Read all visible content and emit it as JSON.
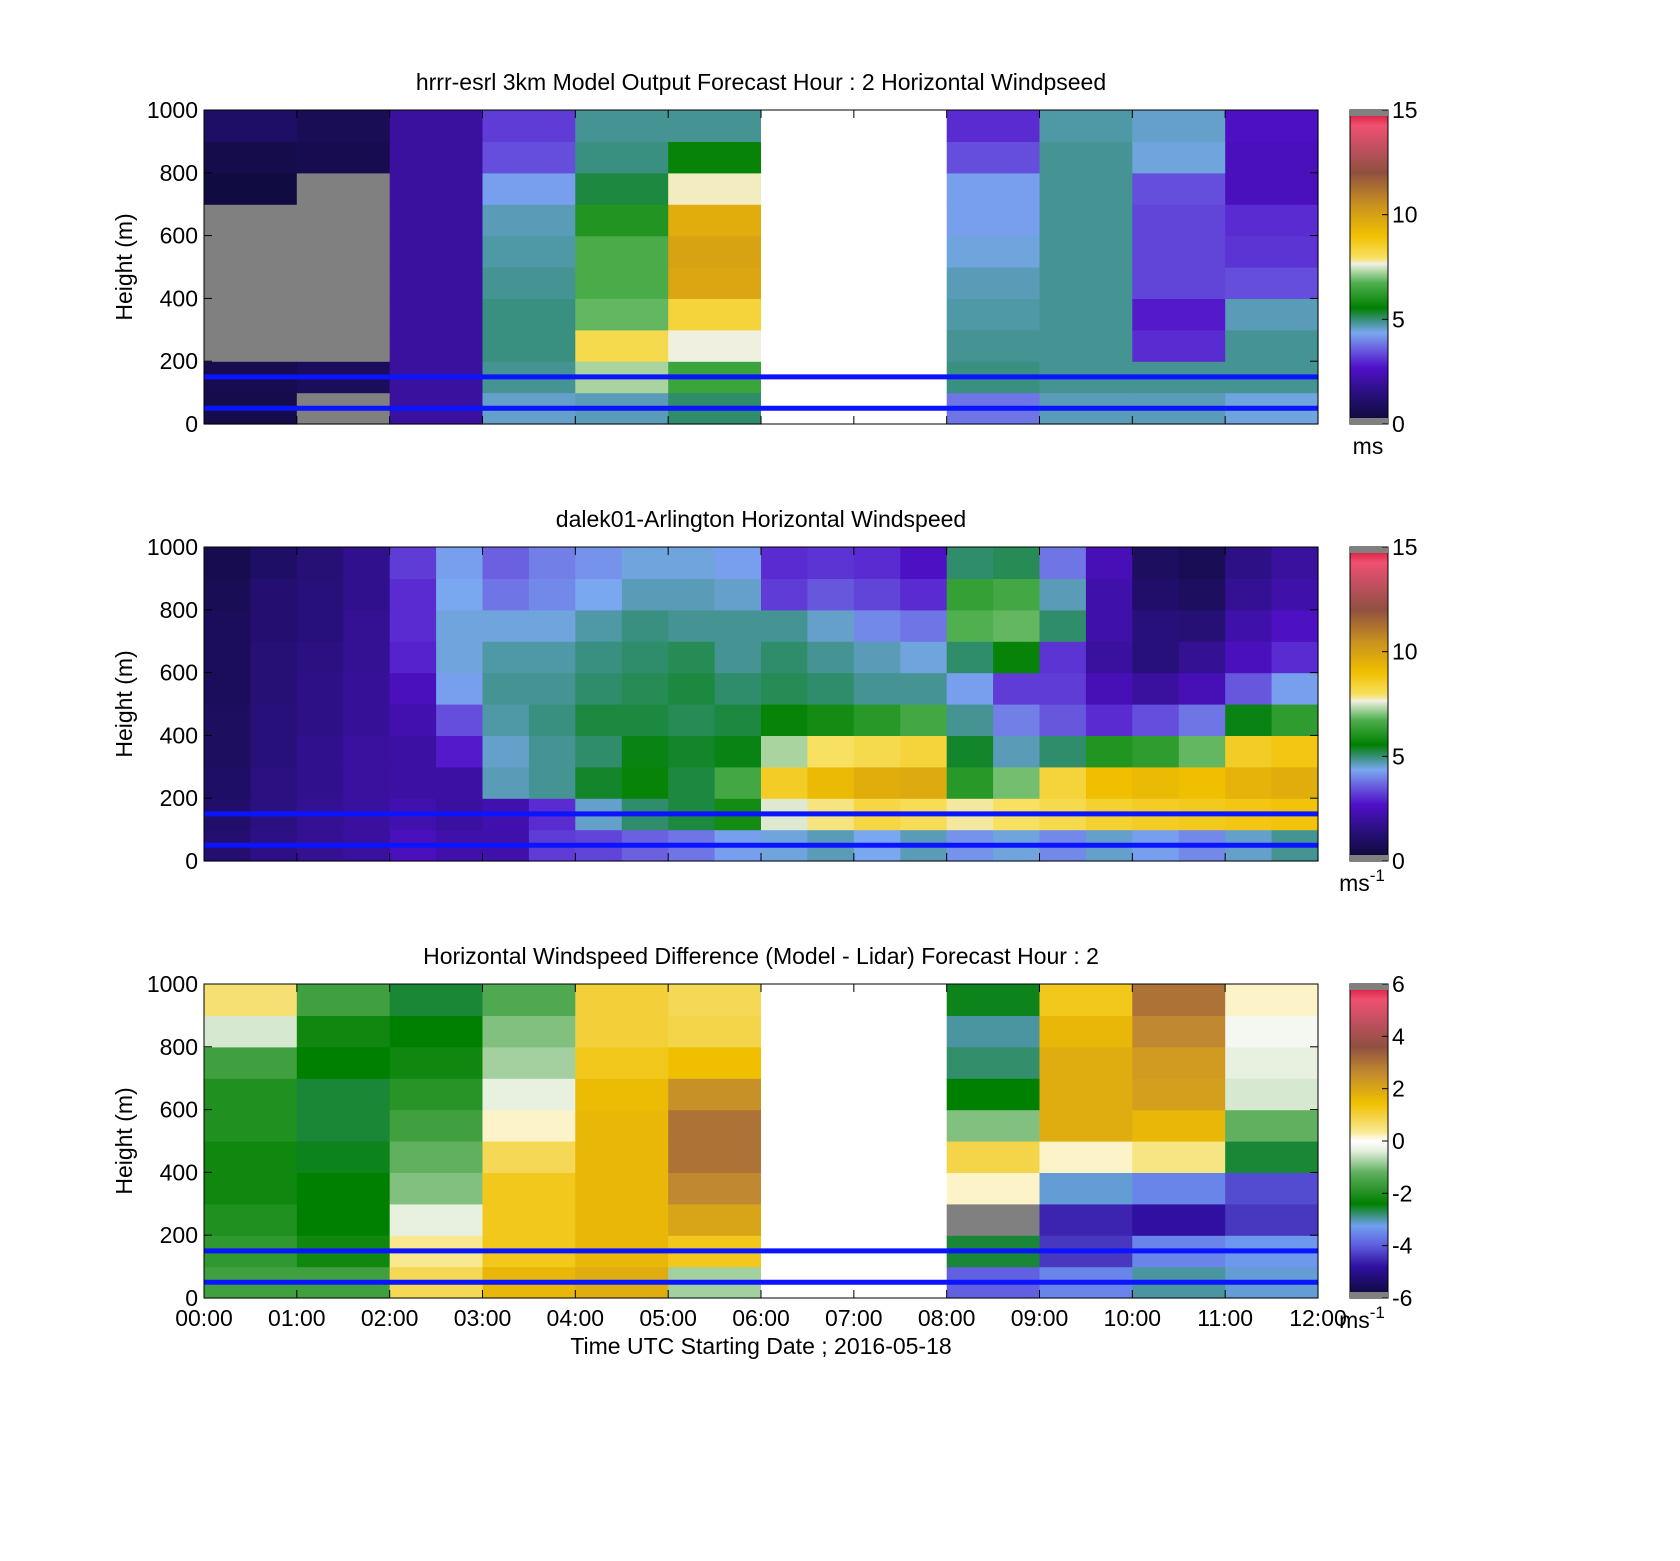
{
  "figure": {
    "panels": [
      {
        "title": "hrrr-esrl 3km Model Output   Forecast Hour : 2 Horizontal Windpseed",
        "ylabel": "Height (m)",
        "yticks": [
          "0",
          "200",
          "400",
          "600",
          "800",
          "1000"
        ],
        "colorbar": {
          "ticks": [
            "0",
            "5",
            "10",
            "15"
          ],
          "unit": "ms",
          "superscript": ""
        }
      },
      {
        "title": "dalek01-Arlington  Horizontal Windspeed",
        "ylabel": "Height (m)",
        "yticks": [
          "0",
          "200",
          "400",
          "600",
          "800",
          "1000"
        ],
        "colorbar": {
          "ticks": [
            "0",
            "5",
            "10",
            "15"
          ],
          "unit": "ms",
          "superscript": "-1"
        }
      },
      {
        "title": "Horizontal Windspeed Difference (Model - Lidar) Forecast Hour : 2",
        "ylabel": "Height (m)",
        "yticks": [
          "0",
          "200",
          "400",
          "600",
          "800",
          "1000"
        ],
        "colorbar": {
          "ticks": [
            "-6",
            "-4",
            "-2",
            "0",
            "2",
            "4",
            "6"
          ],
          "unit": "ms",
          "superscript": "-1"
        }
      }
    ],
    "xticks": [
      "00:00",
      "01:00",
      "02:00",
      "03:00",
      "04:00",
      "05:00",
      "06:00",
      "07:00",
      "08:00",
      "09:00",
      "10:00",
      "11:00",
      "12:00"
    ],
    "xlabel": "Time UTC  Starting Date ; 2016-05-18"
  },
  "colors": {
    "reference_lines": "#0a14ff",
    "missing_model": "#808080",
    "no_data": "#ffffff"
  },
  "chart_data": [
    {
      "type": "heatmap",
      "title": "hrrr-esrl 3km Model Output   Forecast Hour : 2 Horizontal Windpseed",
      "xlabel": "",
      "ylabel": "Height (m)",
      "xlim": [
        0,
        12
      ],
      "ylim": [
        0,
        1000
      ],
      "clim": [
        0,
        15
      ],
      "colorbar_unit": "ms",
      "x_hours": [
        0,
        1,
        2,
        3,
        4,
        5,
        6,
        7,
        8,
        9,
        10,
        11
      ],
      "heights": [
        0,
        100,
        200,
        300,
        400,
        500,
        600,
        700,
        800,
        900
      ],
      "values_by_hour": [
        [
          0.5,
          0.6,
          null,
          null,
          null,
          null,
          null,
          0.3,
          0.5,
          1.0
        ],
        [
          null,
          0.8,
          null,
          null,
          null,
          null,
          null,
          null,
          0.6,
          0.7
        ],
        [
          2.0,
          2.0,
          2.0,
          2.0,
          2.0,
          2.0,
          2.0,
          2.0,
          2.0,
          2.0
        ],
        [
          4.5,
          4.8,
          4.9,
          4.9,
          4.8,
          4.7,
          4.6,
          4.2,
          3.4,
          3.2
        ],
        [
          4.6,
          7.2,
          8.2,
          6.8,
          6.6,
          6.6,
          6.0,
          5.2,
          4.9,
          4.8
        ],
        [
          5.0,
          6.4,
          7.6,
          8.4,
          9.8,
          9.9,
          9.6,
          7.7,
          5.6,
          4.8
        ],
        [
          null,
          null,
          null,
          null,
          null,
          null,
          null,
          null,
          null,
          null
        ],
        [
          null,
          null,
          null,
          null,
          null,
          null,
          null,
          null,
          null,
          null
        ],
        [
          3.8,
          4.9,
          4.8,
          4.7,
          4.6,
          4.4,
          4.2,
          4.2,
          3.4,
          3.0
        ],
        [
          4.6,
          4.8,
          4.8,
          4.8,
          4.8,
          4.8,
          4.8,
          4.8,
          4.8,
          4.7
        ],
        [
          4.6,
          4.8,
          3.0,
          2.8,
          3.3,
          3.3,
          3.3,
          3.4,
          4.4,
          4.5
        ],
        [
          4.4,
          4.8,
          4.8,
          4.6,
          3.4,
          3.1,
          3.0,
          2.5,
          2.5,
          2.6
        ]
      ],
      "reference_lines_m": [
        50,
        150
      ]
    },
    {
      "type": "heatmap",
      "title": "dalek01-Arlington  Horizontal Windspeed",
      "xlabel": "",
      "ylabel": "Height (m)",
      "xlim": [
        0,
        12
      ],
      "ylim": [
        0,
        1000
      ],
      "clim": [
        0,
        15
      ],
      "colorbar_unit": "ms-1",
      "x_hours": [
        0,
        0.5,
        1,
        1.5,
        2,
        2.5,
        3,
        3.5,
        4,
        4.5,
        5,
        5.5,
        6,
        6.5,
        7,
        7.5,
        8,
        8.5,
        9,
        9.5,
        10,
        10.5,
        11,
        11.5
      ],
      "heights": [
        0,
        100,
        200,
        300,
        400,
        500,
        600,
        700,
        800,
        900
      ],
      "values_by_halfhour": [
        [
          1.2,
          1.1,
          1.0,
          0.9,
          0.9,
          0.8,
          0.8,
          0.8,
          0.7,
          0.6
        ],
        [
          1.6,
          1.5,
          1.5,
          1.4,
          1.4,
          1.3,
          1.3,
          1.2,
          1.2,
          1.0
        ],
        [
          1.8,
          1.8,
          1.7,
          1.7,
          1.6,
          1.6,
          1.5,
          1.4,
          1.4,
          1.3
        ],
        [
          2.0,
          2.0,
          2.0,
          2.0,
          1.9,
          1.9,
          1.8,
          1.8,
          1.7,
          1.7
        ],
        [
          2.5,
          2.3,
          2.1,
          2.1,
          2.3,
          2.5,
          2.9,
          3.0,
          3.0,
          3.2
        ],
        [
          2.2,
          2.0,
          2.1,
          2.8,
          3.4,
          4.2,
          4.4,
          4.4,
          4.3,
          4.2
        ],
        [
          2.2,
          2.3,
          4.6,
          4.5,
          4.7,
          4.8,
          4.7,
          4.4,
          3.8,
          3.6
        ],
        [
          3.2,
          3.0,
          4.8,
          4.8,
          4.9,
          4.8,
          4.7,
          4.4,
          4.0,
          3.9
        ],
        [
          3.3,
          4.5,
          5.3,
          5.0,
          5.2,
          5.0,
          4.9,
          4.7,
          4.3,
          4.1
        ],
        [
          3.6,
          5.0,
          5.6,
          5.4,
          5.2,
          5.1,
          5.0,
          4.9,
          4.6,
          4.4
        ],
        [
          3.8,
          5.2,
          5.2,
          5.3,
          5.1,
          5.2,
          5.1,
          4.8,
          4.6,
          4.4
        ],
        [
          4.2,
          5.8,
          6.5,
          5.4,
          5.2,
          5.0,
          4.8,
          4.8,
          4.5,
          4.2
        ],
        [
          4.4,
          7.5,
          8.6,
          7.2,
          5.6,
          5.1,
          5.0,
          4.8,
          3.2,
          3.0
        ],
        [
          4.6,
          7.9,
          9.2,
          8.0,
          5.8,
          5.0,
          4.8,
          4.5,
          3.5,
          3.1
        ],
        [
          4.3,
          8.3,
          9.6,
          8.2,
          6.1,
          4.8,
          4.6,
          4.0,
          3.3,
          3.0
        ],
        [
          4.6,
          8.1,
          9.7,
          8.4,
          6.5,
          4.8,
          4.4,
          3.8,
          3.0,
          2.6
        ],
        [
          4.1,
          7.8,
          6.1,
          5.3,
          4.8,
          4.2,
          5.0,
          6.7,
          6.3,
          5.0
        ],
        [
          4.4,
          8.0,
          6.9,
          4.6,
          3.9,
          3.2,
          5.6,
          6.8,
          6.5,
          5.1
        ],
        [
          4.0,
          8.2,
          8.4,
          5.0,
          3.5,
          3.2,
          3.1,
          5.0,
          4.6,
          3.8
        ],
        [
          4.5,
          8.5,
          9.0,
          6.0,
          3.0,
          2.4,
          2.0,
          2.2,
          2.2,
          2.4
        ],
        [
          4.2,
          8.6,
          9.2,
          6.2,
          3.4,
          2.0,
          1.4,
          1.4,
          1.1,
          0.9
        ],
        [
          4.0,
          8.7,
          9.0,
          6.8,
          3.8,
          2.4,
          1.8,
          1.3,
          0.9,
          0.7
        ],
        [
          4.5,
          8.8,
          9.4,
          8.6,
          5.4,
          3.5,
          2.5,
          2.2,
          1.8,
          1.6
        ],
        [
          4.8,
          8.9,
          9.6,
          8.8,
          6.2,
          4.2,
          3.0,
          2.6,
          2.2,
          2.0
        ]
      ],
      "reference_lines_m": [
        50,
        150
      ]
    },
    {
      "type": "heatmap",
      "title": "Horizontal Windspeed Difference (Model - Lidar) Forecast Hour : 2",
      "xlabel": "Time UTC  Starting Date ; 2016-05-18",
      "ylabel": "Height (m)",
      "xlim": [
        0,
        12
      ],
      "ylim": [
        0,
        1000
      ],
      "clim": [
        -6,
        6
      ],
      "colorbar_unit": "ms-1",
      "x_hours": [
        0,
        1,
        2,
        3,
        4,
        5,
        6,
        7,
        8,
        9,
        10,
        11
      ],
      "heights": [
        0,
        100,
        200,
        300,
        400,
        500,
        600,
        700,
        800,
        900
      ],
      "values_by_hour": [
        [
          -1.6,
          -1.8,
          -2.0,
          -2.2,
          -2.2,
          -2.0,
          -2.0,
          -1.6,
          -0.5,
          0.6
        ],
        [
          -1.6,
          -2.2,
          -2.4,
          -2.4,
          -2.5,
          -2.6,
          -2.6,
          -2.4,
          -2.2,
          -1.6
        ],
        [
          0.8,
          0.4,
          -0.4,
          -1.0,
          -1.2,
          -1.6,
          -1.9,
          -2.2,
          -2.4,
          -2.6
        ],
        [
          1.6,
          1.2,
          1.2,
          1.2,
          0.8,
          0.2,
          -0.4,
          -0.8,
          -1.0,
          -1.4
        ],
        [
          1.8,
          1.6,
          1.6,
          1.6,
          1.6,
          1.6,
          1.5,
          1.2,
          1.0,
          1.0
        ],
        [
          -0.8,
          1.2,
          2.0,
          2.6,
          3.0,
          3.0,
          2.4,
          1.4,
          0.9,
          0.8
        ],
        [
          null,
          null,
          null,
          null,
          null,
          null,
          null,
          null,
          null,
          null
        ],
        [
          null,
          null,
          null,
          null,
          null,
          null,
          null,
          null,
          null,
          null
        ],
        [
          -4.0,
          -2.6,
          null,
          0.2,
          0.9,
          -1.0,
          -2.4,
          -2.8,
          -3.0,
          -2.5
        ],
        [
          -3.6,
          -4.4,
          -4.6,
          -3.2,
          0.2,
          1.8,
          1.8,
          1.8,
          1.6,
          1.2
        ],
        [
          -3.0,
          -3.6,
          -4.8,
          -3.6,
          0.5,
          1.6,
          2.1,
          2.2,
          2.6,
          3.0
        ],
        [
          -3.2,
          -3.4,
          -4.4,
          -4.2,
          -2.6,
          -1.2,
          -0.5,
          -0.4,
          -0.2,
          0.2
        ]
      ],
      "reference_lines_m": [
        50,
        150
      ]
    }
  ]
}
